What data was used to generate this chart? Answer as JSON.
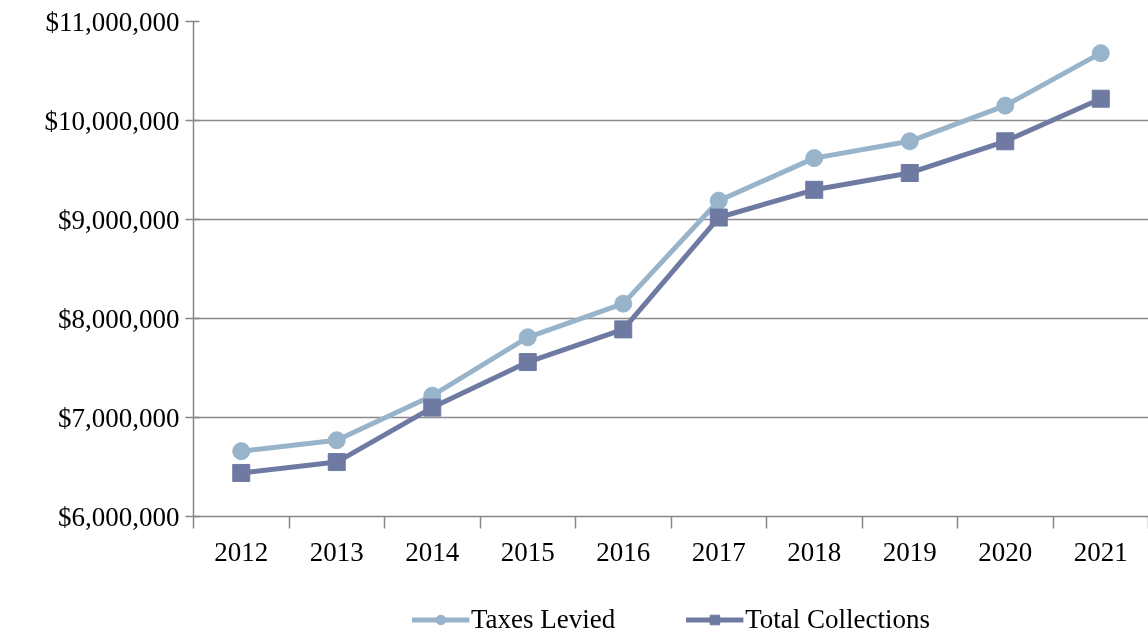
{
  "chart_data": {
    "type": "line",
    "categories": [
      "2012",
      "2013",
      "2014",
      "2015",
      "2016",
      "2017",
      "2018",
      "2019",
      "2020",
      "2021"
    ],
    "series": [
      {
        "name": "Taxes Levied",
        "color": "#98b4cb",
        "marker": "circle",
        "values": [
          6660000,
          6770000,
          7220000,
          7810000,
          8150000,
          9190000,
          9620000,
          9790000,
          10150000,
          10680000
        ]
      },
      {
        "name": "Total Collections",
        "color": "#6f7aa3",
        "marker": "square",
        "values": [
          6440000,
          6550000,
          7100000,
          7560000,
          7890000,
          9020000,
          9300000,
          9470000,
          9790000,
          10220000
        ]
      }
    ],
    "ylim": [
      6000000,
      11000000
    ],
    "yticks": [
      {
        "value": 6000000,
        "label": "$6,000,000"
      },
      {
        "value": 7000000,
        "label": "$7,000,000"
      },
      {
        "value": 8000000,
        "label": "$8,000,000"
      },
      {
        "value": 9000000,
        "label": "$9,000,000"
      },
      {
        "value": 10000000,
        "label": "$10,000,000"
      },
      {
        "value": 11000000,
        "label": "$11,000,000"
      }
    ],
    "grid": "y",
    "legend": "bottom",
    "line_style": "solid"
  }
}
